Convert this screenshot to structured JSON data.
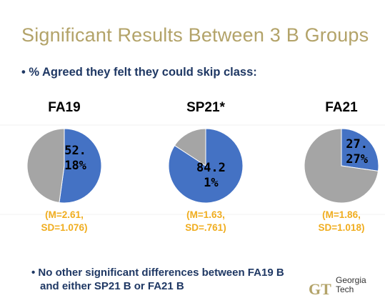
{
  "title": "Significant Results Between 3 B Groups",
  "bullet": "% Agreed they felt they could skip class:",
  "chart_data": [
    {
      "type": "pie",
      "title": "FA19",
      "values": [
        52.18,
        47.82
      ],
      "value_labels": [
        "52.18%",
        null
      ],
      "colors": [
        "#4472c4",
        "#a5a5a5"
      ],
      "annotation": [
        "(M=2.61,",
        "SD=1.076)"
      ]
    },
    {
      "type": "pie",
      "title": "SP21*",
      "values": [
        84.21,
        15.79
      ],
      "value_labels": [
        "84.21%",
        null
      ],
      "colors": [
        "#4472c4",
        "#a5a5a5"
      ],
      "annotation": [
        "(M=1.63,",
        "SD=.761)"
      ]
    },
    {
      "type": "pie",
      "title": "FA21",
      "values": [
        27.27,
        72.73
      ],
      "value_labels": [
        "27.27%",
        null
      ],
      "colors": [
        "#4472c4",
        "#a5a5a5"
      ],
      "annotation": [
        "(M=1.86,",
        "SD=1.018)"
      ]
    }
  ],
  "footnote": "No other significant differences between FA19 B and either SP21 B or FA21 B",
  "logo": [
    "Georgia",
    "Tech"
  ]
}
